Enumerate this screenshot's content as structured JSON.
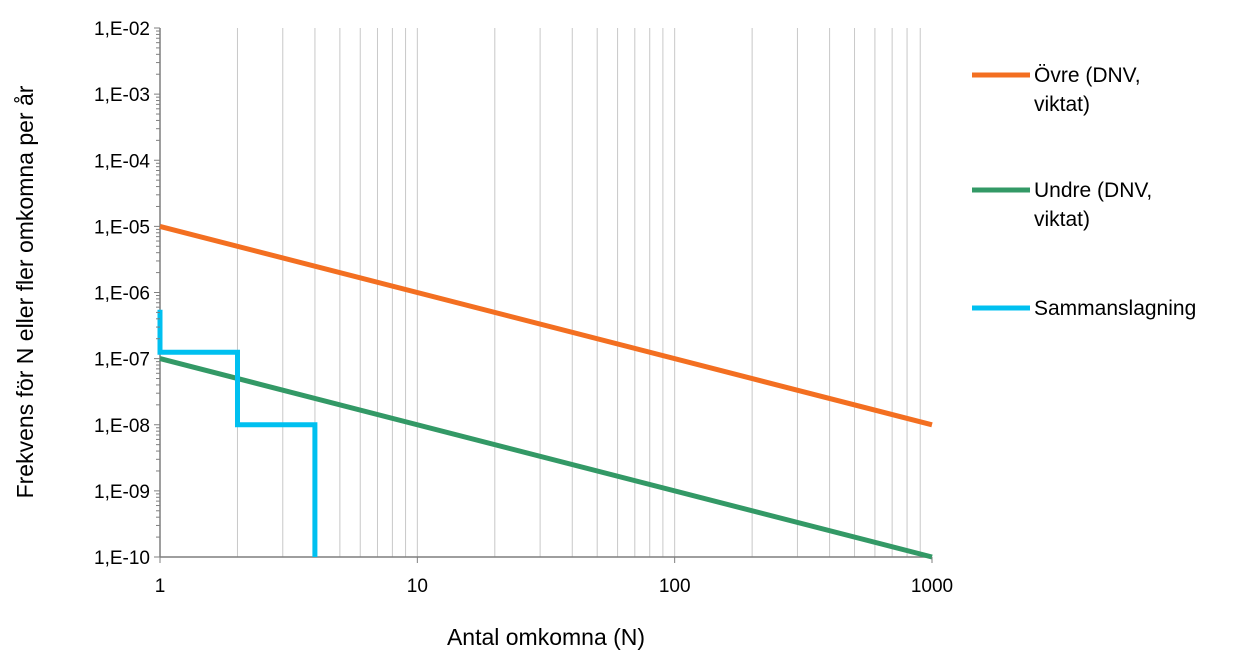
{
  "chart_data": {
    "type": "line",
    "title": "",
    "xlabel": "Antal omkomna (N)",
    "ylabel": "Frekvens för N eller fler omkomna per år",
    "x_scale": "log",
    "y_scale": "log",
    "xlim": [
      1,
      1000
    ],
    "ylim": [
      1e-10,
      0.01
    ],
    "x_ticks": [
      {
        "value": 1,
        "label": "1"
      },
      {
        "value": 10,
        "label": "10"
      },
      {
        "value": 100,
        "label": "100"
      },
      {
        "value": 1000,
        "label": "1000"
      }
    ],
    "y_ticks": [
      {
        "value": 1e-10,
        "label": "1,E-10"
      },
      {
        "value": 1e-09,
        "label": "1,E-09"
      },
      {
        "value": 1e-08,
        "label": "1,E-08"
      },
      {
        "value": 1e-07,
        "label": "1,E-07"
      },
      {
        "value": 1e-06,
        "label": "1,E-06"
      },
      {
        "value": 1e-05,
        "label": "1,E-05"
      },
      {
        "value": 0.0001,
        "label": "1,E-04"
      },
      {
        "value": 0.001,
        "label": "1,E-03"
      },
      {
        "value": 0.01,
        "label": "1,E-02"
      }
    ],
    "grid": {
      "vertical_minor": true,
      "horizontal": false
    },
    "legend_position": "right",
    "series": [
      {
        "name": "Övre (DNV, viktat)",
        "legend_lines": [
          "Övre (DNV,",
          "viktat)"
        ],
        "color": "#f36f21",
        "points": [
          [
            1,
            1e-05
          ],
          [
            1000,
            1e-08
          ]
        ]
      },
      {
        "name": "Undre (DNV, viktat)",
        "legend_lines": [
          "Undre (DNV,",
          "viktat)"
        ],
        "color": "#339966",
        "points": [
          [
            1,
            1e-07
          ],
          [
            1000,
            1e-10
          ]
        ]
      },
      {
        "name": "Sammanslagning",
        "legend_lines": [
          "Sammanslagning"
        ],
        "color": "#00c0f0",
        "points": [
          [
            1,
            5.5e-07
          ],
          [
            1,
            1.25e-07
          ],
          [
            2,
            1.25e-07
          ],
          [
            2,
            1e-08
          ],
          [
            4,
            1e-08
          ],
          [
            4,
            1e-10
          ]
        ]
      }
    ]
  }
}
